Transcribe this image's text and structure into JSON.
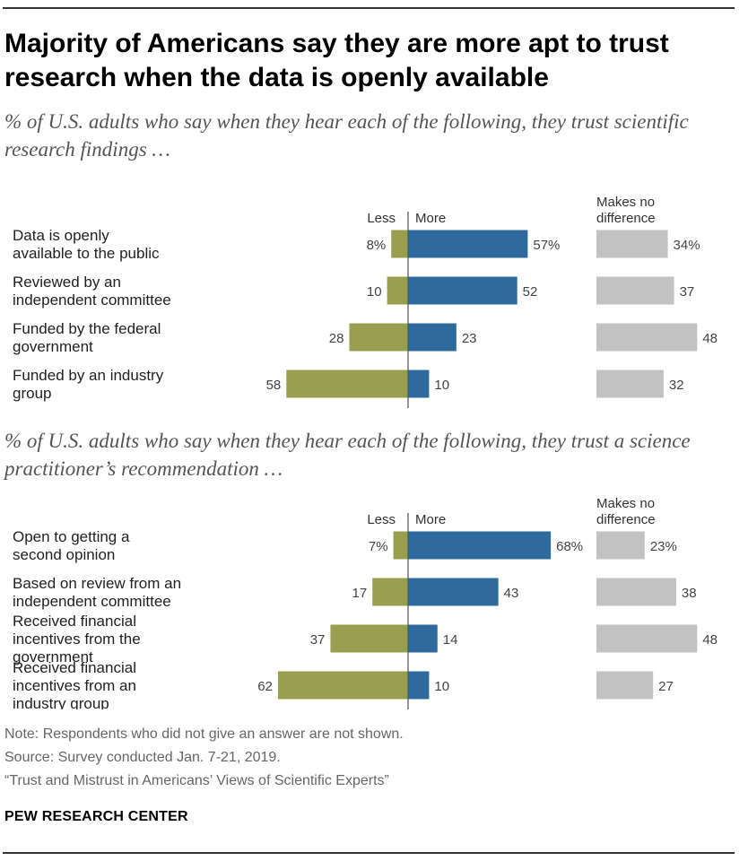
{
  "title": "Majority of Americans say they are more apt to trust research when the data is openly available",
  "colors": {
    "less": "#98a04f",
    "more": "#2e6a9b",
    "nodiff": "#c2c2c2",
    "axis": "#555555"
  },
  "chart_data": [
    {
      "type": "bar",
      "subtitle": "% of U.S. adults who say when they hear each of the following, they trust scientific research findings …",
      "legend": {
        "less": "Less",
        "more": "More",
        "nodiff": "Makes no difference"
      },
      "categories": [
        "Data is openly available to the public",
        "Reviewed by an independent committee",
        "Funded by the federal government",
        "Funded by an industry group"
      ],
      "series": [
        {
          "name": "Less",
          "values": [
            8,
            10,
            28,
            58
          ]
        },
        {
          "name": "More",
          "values": [
            57,
            52,
            23,
            10
          ]
        },
        {
          "name": "Makes no difference",
          "values": [
            34,
            37,
            48,
            32
          ]
        }
      ]
    },
    {
      "type": "bar",
      "subtitle": "% of U.S. adults who say when they hear each of the following, they trust a science practitioner’s recommendation …",
      "legend": {
        "less": "Less",
        "more": "More",
        "nodiff": "Makes no difference"
      },
      "categories": [
        "Open to getting a second opinion",
        "Based on review from an independent committee",
        "Received financial incentives from the government",
        "Received financial incentives from an industry group"
      ],
      "series": [
        {
          "name": "Less",
          "values": [
            7,
            17,
            37,
            62
          ]
        },
        {
          "name": "More",
          "values": [
            68,
            43,
            14,
            10
          ]
        },
        {
          "name": "Makes no difference",
          "values": [
            23,
            38,
            48,
            27
          ]
        }
      ]
    }
  ],
  "notes": {
    "note": "Note: Respondents who did not give an answer are not shown.",
    "source": "Source: Survey conducted Jan. 7-21, 2019.",
    "report": "“Trust and Mistrust in Americans’ Views of Scientific Experts”",
    "brand": "PEW RESEARCH CENTER"
  }
}
